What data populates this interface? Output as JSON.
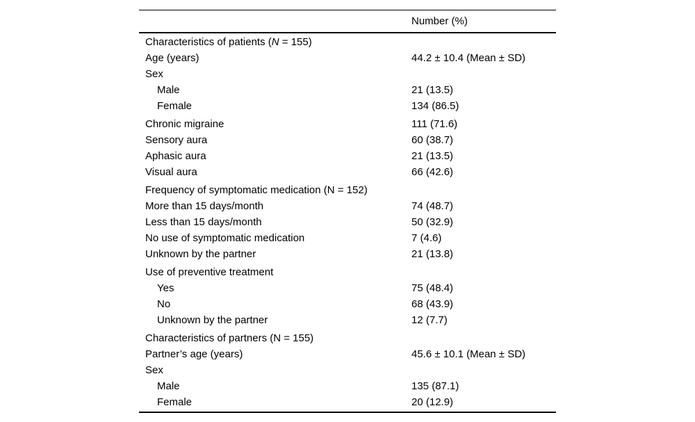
{
  "table": {
    "header": {
      "label_column": "",
      "value_column": "Number (%)"
    },
    "rows": [
      {
        "label": "Characteristics of patients (N = 155)",
        "value": "",
        "indent": 0,
        "space_before": false,
        "italic_n": true
      },
      {
        "label": "Age (years)",
        "value": "44.2 ± 10.4 (Mean ± SD)",
        "indent": 0,
        "space_before": false,
        "italic_n": false
      },
      {
        "label": "Sex",
        "value": "",
        "indent": 0,
        "space_before": false,
        "italic_n": false
      },
      {
        "label": "Male",
        "value": "21 (13.5)",
        "indent": 1,
        "space_before": false,
        "italic_n": false
      },
      {
        "label": "Female",
        "value": "134 (86.5)",
        "indent": 1,
        "space_before": false,
        "italic_n": false
      },
      {
        "label": "Chronic migraine",
        "value": "111 (71.6)",
        "indent": 0,
        "space_before": true,
        "italic_n": false
      },
      {
        "label": "Sensory aura",
        "value": "60 (38.7)",
        "indent": 0,
        "space_before": false,
        "italic_n": false
      },
      {
        "label": "Aphasic aura",
        "value": "21 (13.5)",
        "indent": 0,
        "space_before": false,
        "italic_n": false
      },
      {
        "label": "Visual aura",
        "value": "66 (42.6)",
        "indent": 0,
        "space_before": false,
        "italic_n": false
      },
      {
        "label": "Frequency of symptomatic medication (N = 152)",
        "value": "",
        "indent": 0,
        "space_before": true,
        "italic_n": false
      },
      {
        "label": "More than 15 days/month",
        "value": "74 (48.7)",
        "indent": 0,
        "space_before": false,
        "italic_n": false
      },
      {
        "label": "Less than 15 days/month",
        "value": "50 (32.9)",
        "indent": 0,
        "space_before": false,
        "italic_n": false
      },
      {
        "label": "No use of symptomatic medication",
        "value": "7 (4.6)",
        "indent": 0,
        "space_before": false,
        "italic_n": false
      },
      {
        "label": "Unknown by the partner",
        "value": "21 (13.8)",
        "indent": 0,
        "space_before": false,
        "italic_n": false
      },
      {
        "label": "Use of preventive treatment",
        "value": "",
        "indent": 0,
        "space_before": true,
        "italic_n": false
      },
      {
        "label": "Yes",
        "value": "75 (48.4)",
        "indent": 1,
        "space_before": false,
        "italic_n": false
      },
      {
        "label": "No",
        "value": "68 (43.9)",
        "indent": 1,
        "space_before": false,
        "italic_n": false
      },
      {
        "label": "Unknown by the partner",
        "value": "12 (7.7)",
        "indent": 1,
        "space_before": false,
        "italic_n": false
      },
      {
        "label": "Characteristics of partners (N = 155)",
        "value": "",
        "indent": 0,
        "space_before": true,
        "italic_n": false
      },
      {
        "label": "Partner’s age (years)",
        "value": "45.6 ± 10.1 (Mean ± SD)",
        "indent": 0,
        "space_before": false,
        "italic_n": false
      },
      {
        "label": "Sex",
        "value": "",
        "indent": 0,
        "space_before": false,
        "italic_n": false
      },
      {
        "label": "Male",
        "value": "135 (87.1)",
        "indent": 1,
        "space_before": false,
        "italic_n": false
      },
      {
        "label": "Female",
        "value": "20 (12.9)",
        "indent": 1,
        "space_before": false,
        "italic_n": false
      }
    ]
  }
}
